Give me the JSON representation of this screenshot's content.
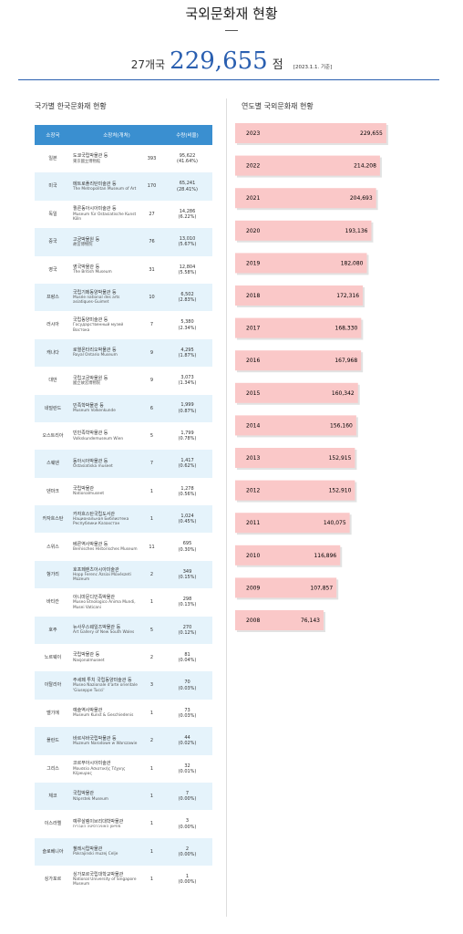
{
  "header": {
    "title": "국외문화재 현황",
    "countries": "27개국",
    "total": "229,655",
    "unit": "점",
    "date": "[2023.1.1. 기준]"
  },
  "table": {
    "title": "국가별 한국문화재 현황",
    "columns": [
      "소장국",
      "소장처(개처)",
      "수량(비율)"
    ],
    "rows": [
      {
        "country": "일본",
        "name": "도쿄국립박물관 등",
        "name_en": "東京國立博物館",
        "count": 393,
        "quantity": "95,622",
        "ratio": "(41.64%)"
      },
      {
        "country": "미국",
        "name": "메트로폴리탄미술관 등",
        "name_en": "The Metropolitan Museum of Art",
        "count": 170,
        "quantity": "65,241",
        "ratio": "(28.41%)"
      },
      {
        "country": "독일",
        "name": "쾰른동아시아미술관 등",
        "name_en": "Museum für Ostasiatische Kunst Köln",
        "count": 27,
        "quantity": "14,286",
        "ratio": "(6.22%)"
      },
      {
        "country": "중국",
        "name": "고궁박물원 등",
        "name_en": "故宮博物院",
        "count": 76,
        "quantity": "13,010",
        "ratio": "(5.67%)"
      },
      {
        "country": "영국",
        "name": "영국박물관 등",
        "name_en": "The British Museum",
        "count": 31,
        "quantity": "12,804",
        "ratio": "(5.58%)"
      },
      {
        "country": "프랑스",
        "name": "국립기메동양박물관 등",
        "name_en": "Musée national des arts asiatiques-Guimet",
        "count": 10,
        "quantity": "6,502",
        "ratio": "(2.83%)"
      },
      {
        "country": "러시아",
        "name": "국립동양미술관 등",
        "name_en": "Государственный музей Востока",
        "count": 7,
        "quantity": "5,380",
        "ratio": "(2.34%)"
      },
      {
        "country": "캐나다",
        "name": "로열온타리오박물관 등",
        "name_en": "Royal Ontario Museum",
        "count": 9,
        "quantity": "4,295",
        "ratio": "(1.87%)"
      },
      {
        "country": "대만",
        "name": "국립고궁박물원 등",
        "name_en": "國立故宮博物院",
        "count": 9,
        "quantity": "3,073",
        "ratio": "(1.34%)"
      },
      {
        "country": "네덜란드",
        "name": "민족학박물관 등",
        "name_en": "Museum Volkenkunde",
        "count": 6,
        "quantity": "1,999",
        "ratio": "(0.87%)"
      },
      {
        "country": "오스트리아",
        "name": "빈민족학박물관 등",
        "name_en": "Volkskundemuseum Wien",
        "count": 5,
        "quantity": "1,799",
        "ratio": "(0.78%)"
      },
      {
        "country": "스웨덴",
        "name": "동아시아박물관 등",
        "name_en": "Östasiatiska museet",
        "count": 7,
        "quantity": "1,417",
        "ratio": "(0.62%)"
      },
      {
        "country": "덴마크",
        "name": "국립박물관",
        "name_en": "Nationalmuseet",
        "count": 1,
        "quantity": "1,278",
        "ratio": "(0.56%)"
      },
      {
        "country": "카자흐스탄",
        "name": "카자흐스탄국립도서관",
        "name_en": "Национальная Библиотека Республики Казахстан",
        "count": 1,
        "quantity": "1,024",
        "ratio": "(0.45%)"
      },
      {
        "country": "스위스",
        "name": "베른역사박물관 등",
        "name_en": "Bernisches Historisches Museum",
        "count": 11,
        "quantity": "695",
        "ratio": "(0.30%)"
      },
      {
        "country": "헝가리",
        "name": "호프페렌츠아시아미술관",
        "name_en": "Hopp Ferenc Ázsiai Művészeti Múzeum",
        "count": 2,
        "quantity": "349",
        "ratio": "(0.15%)"
      },
      {
        "country": "바티칸",
        "name": "아니마문디민족박물관",
        "name_en": "Museo Etnologico Anima Mundi, Musei Vaticani",
        "count": 1,
        "quantity": "298",
        "ratio": "(0.13%)"
      },
      {
        "country": "호주",
        "name": "뉴사우스웨일즈박물관 등",
        "name_en": "Art Gallery of New South Wales",
        "count": 5,
        "quantity": "270",
        "ratio": "(0.12%)"
      },
      {
        "country": "노르웨이",
        "name": "국립박물관 등",
        "name_en": "Nasjonalmuseet",
        "count": 2,
        "quantity": "81",
        "ratio": "(0.04%)"
      },
      {
        "country": "이탈리아",
        "name": "주세페 투치 국립동양미술관 등",
        "name_en": "Museo Nazionale d'arte orientale 'Giuseppe Tucci'",
        "count": 3,
        "quantity": "70",
        "ratio": "(0.03%)"
      },
      {
        "country": "벨기에",
        "name": "예술역사박물관",
        "name_en": "Museum Kunst & Geschiedenis",
        "count": 1,
        "quantity": "73",
        "ratio": "(0.03%)"
      },
      {
        "country": "폴란드",
        "name": "바르샤바국립박물관 등",
        "name_en": "Muzeum Narodowe w Warszawie",
        "count": 2,
        "quantity": "44",
        "ratio": "(0.02%)"
      },
      {
        "country": "그리스",
        "name": "코르푸아시아미술관",
        "name_en": "Μουσείο Ασιατικής Τέχνης Κέρκυρας",
        "count": 1,
        "quantity": "32",
        "ratio": "(0.01%)"
      },
      {
        "country": "체코",
        "name": "국립박물관",
        "name_en": "Náprstek Museum",
        "count": 1,
        "quantity": "7",
        "ratio": "(0.00%)"
      },
      {
        "country": "이스라엘",
        "name": "예루살렘이브리대학박물관",
        "name_en": "מוזיאון האוניברסיטה העברית",
        "count": 1,
        "quantity": "3",
        "ratio": "(0.00%)"
      },
      {
        "country": "슬로베니아",
        "name": "첼레시립박물관",
        "name_en": "Pokrajinski muzej Celje",
        "count": 1,
        "quantity": "2",
        "ratio": "(0.00%)"
      },
      {
        "country": "싱가포르",
        "name": "싱가포르국립대학교박물관",
        "name_en": "National University of Singapore Museum",
        "count": 1,
        "quantity": "1",
        "ratio": "(0.00%)"
      }
    ]
  },
  "chart_data": {
    "type": "bar",
    "title": "연도별 국외문화재 현황",
    "categories": [
      "2023",
      "2022",
      "2021",
      "2020",
      "2019",
      "2018",
      "2017",
      "2016",
      "2015",
      "2014",
      "2013",
      "2012",
      "2011",
      "2010",
      "2009",
      "2008"
    ],
    "values": [
      229655,
      214208,
      204693,
      193136,
      182080,
      172316,
      168330,
      167968,
      160342,
      156160,
      152915,
      152910,
      140075,
      116896,
      107857,
      76143
    ],
    "value_labels": [
      "229,655",
      "214,208",
      "204,693",
      "193,136",
      "182,080",
      "172,316",
      "168,330",
      "167,968",
      "160,342",
      "156,160",
      "152,915",
      "152,910",
      "140,075",
      "116,896",
      "107,857",
      "76,143"
    ],
    "color": "#fac8c8",
    "xlim": [
      -140000,
      230000
    ]
  }
}
